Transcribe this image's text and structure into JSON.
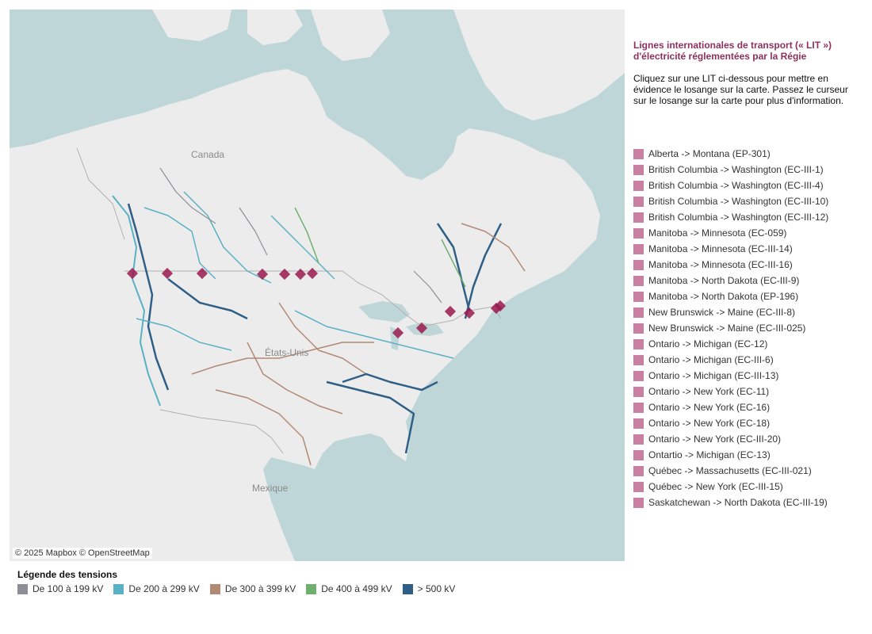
{
  "map": {
    "attribution": "© 2025 Mapbox © OpenStreetMap",
    "labels": {
      "canada": "Canada",
      "etats": "États-Unis",
      "mexique": "Mexique"
    },
    "colors": {
      "water": "#bfd6d8",
      "land": "#ececec",
      "border": "#b0b0b0",
      "marker": "#9a1a4e"
    }
  },
  "panel": {
    "title": "Lignes internationales de transport (« LIT ») d'électricité réglementées par la Régie",
    "instructions": "Cliquez sur une LIT ci-dessous pour mettre en évidence le losange sur la carte. Passez le curseur sur le losange sur la carte pour plus d'information."
  },
  "lit_list": [
    "Alberta -> Montana (EP-301)",
    "British Columbia -> Washington (EC-III-1)",
    "British Columbia -> Washington (EC-III-4)",
    "British Columbia -> Washington (EC-III-10)",
    "British Columbia -> Washington (EC-III-12)",
    "Manitoba -> Minnesota (EC-059)",
    "Manitoba -> Minnesota (EC-III-14)",
    "Manitoba -> Minnesota (EC-III-16)",
    "Manitoba -> North Dakota (EC-III-9)",
    "Manitoba -> North Dakota (EP-196)",
    "New Brunswick -> Maine (EC-III-8)",
    "New Brunswick -> Maine (EC-III-025)",
    "Ontario -> Michigan (EC-12)",
    "Ontario -> Michigan (EC-III-6)",
    "Ontario -> Michigan (EC-III-13)",
    "Ontario -> New York (EC-11)",
    "Ontario -> New York (EC-16)",
    "Ontario -> New York (EC-18)",
    "Ontario -> New York (EC-III-20)",
    "Ontartio -> Michigan (EC-13)",
    "Québec -> Massachusetts (EC-III-021)",
    "Québec -> New York (EC-III-15)",
    "Saskatchewan -> North Dakota (EC-III-19)"
  ],
  "legend": {
    "title": "Légende des tensions",
    "items": [
      {
        "label": "De 100 à 199 kV",
        "color": "#8c8f96"
      },
      {
        "label": "De 200 à 299 kV",
        "color": "#5ab0c4"
      },
      {
        "label": "De 300 à 399 kV",
        "color": "#b28a74"
      },
      {
        "label": "De 400 à 499 kV",
        "color": "#6fb06f"
      },
      {
        "label": "> 500 kV",
        "color": "#2f5f86"
      }
    ]
  }
}
